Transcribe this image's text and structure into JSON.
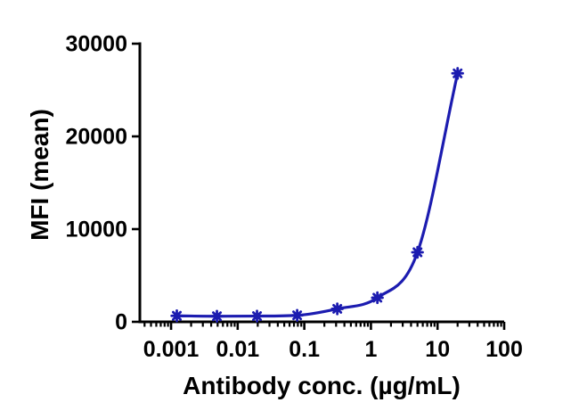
{
  "chart_data": {
    "type": "line",
    "title": "",
    "xlabel": "Antibody conc. (µg/mL)",
    "ylabel": "MFI (mean)",
    "x_scale": "log",
    "y_scale": "linear",
    "x": [
      0.00122,
      0.00488,
      0.0195,
      0.0781,
      0.3125,
      1.25,
      5,
      20
    ],
    "y": [
      650,
      600,
      620,
      700,
      1400,
      2600,
      7500,
      26800
    ],
    "xticks": [
      0.001,
      0.01,
      0.1,
      1,
      10,
      100
    ],
    "xtick_labels": [
      "0.001",
      "0.01",
      "0.1",
      "1",
      "10",
      "100"
    ],
    "yticks": [
      0,
      10000,
      20000,
      30000
    ],
    "ytick_labels": [
      "0",
      "10000",
      "20000",
      "30000"
    ],
    "xlim": [
      0.00034,
      100
    ],
    "ylim": [
      0,
      30000
    ],
    "grid": false,
    "legend": "none",
    "line_color": "#1c1cb0",
    "marker": "asterisk",
    "marker_color": "#1c1cb0",
    "axis_color": "#000000",
    "curve": "smooth sigmoidal dose-response fit through points"
  }
}
